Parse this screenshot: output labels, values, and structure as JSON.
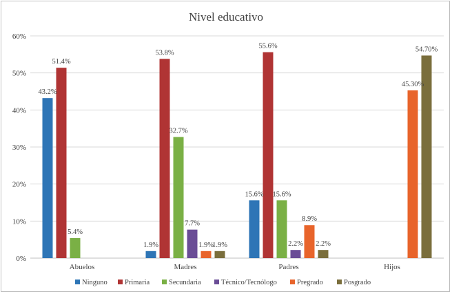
{
  "chart_data": {
    "type": "bar",
    "title": "Nivel educativo",
    "xlabel": "",
    "ylabel": "",
    "ylim": [
      0,
      60
    ],
    "yticks": [
      "0%",
      "10%",
      "20%",
      "30%",
      "40%",
      "50%",
      "60%"
    ],
    "grid": true,
    "legend_position": "bottom",
    "categories": [
      "Abuelos",
      "Madres",
      "Padres",
      "Hijos"
    ],
    "series": [
      {
        "name": "Ninguno",
        "color": "#2e75b6",
        "values": [
          43.2,
          1.9,
          15.6,
          null
        ],
        "labels": [
          "43.2%",
          "1.9%",
          "15.6%",
          ""
        ]
      },
      {
        "name": "Primaria",
        "color": "#b03434",
        "values": [
          51.4,
          53.8,
          55.6,
          null
        ],
        "labels": [
          "51.4%",
          "53.8%",
          "55.6%",
          ""
        ]
      },
      {
        "name": "Secundaria",
        "color": "#7ab045",
        "values": [
          5.4,
          32.7,
          15.6,
          null
        ],
        "labels": [
          "5.4%",
          "32.7%",
          "15.6%",
          ""
        ]
      },
      {
        "name": "Técnico/Tecnólogo",
        "color": "#6a4d96",
        "values": [
          null,
          7.7,
          2.2,
          null
        ],
        "labels": [
          "",
          "7.7%",
          "2.2%",
          ""
        ]
      },
      {
        "name": "Pregrado",
        "color": "#e8642b",
        "values": [
          null,
          1.9,
          8.9,
          45.3
        ],
        "labels": [
          "",
          "1.9%",
          "8.9%",
          "45.30%"
        ]
      },
      {
        "name": "Posgrado",
        "color": "#7a6e3c",
        "values": [
          null,
          1.9,
          2.2,
          54.7
        ],
        "labels": [
          "",
          "1.9%",
          "2.2%",
          "54.70%"
        ]
      }
    ]
  }
}
